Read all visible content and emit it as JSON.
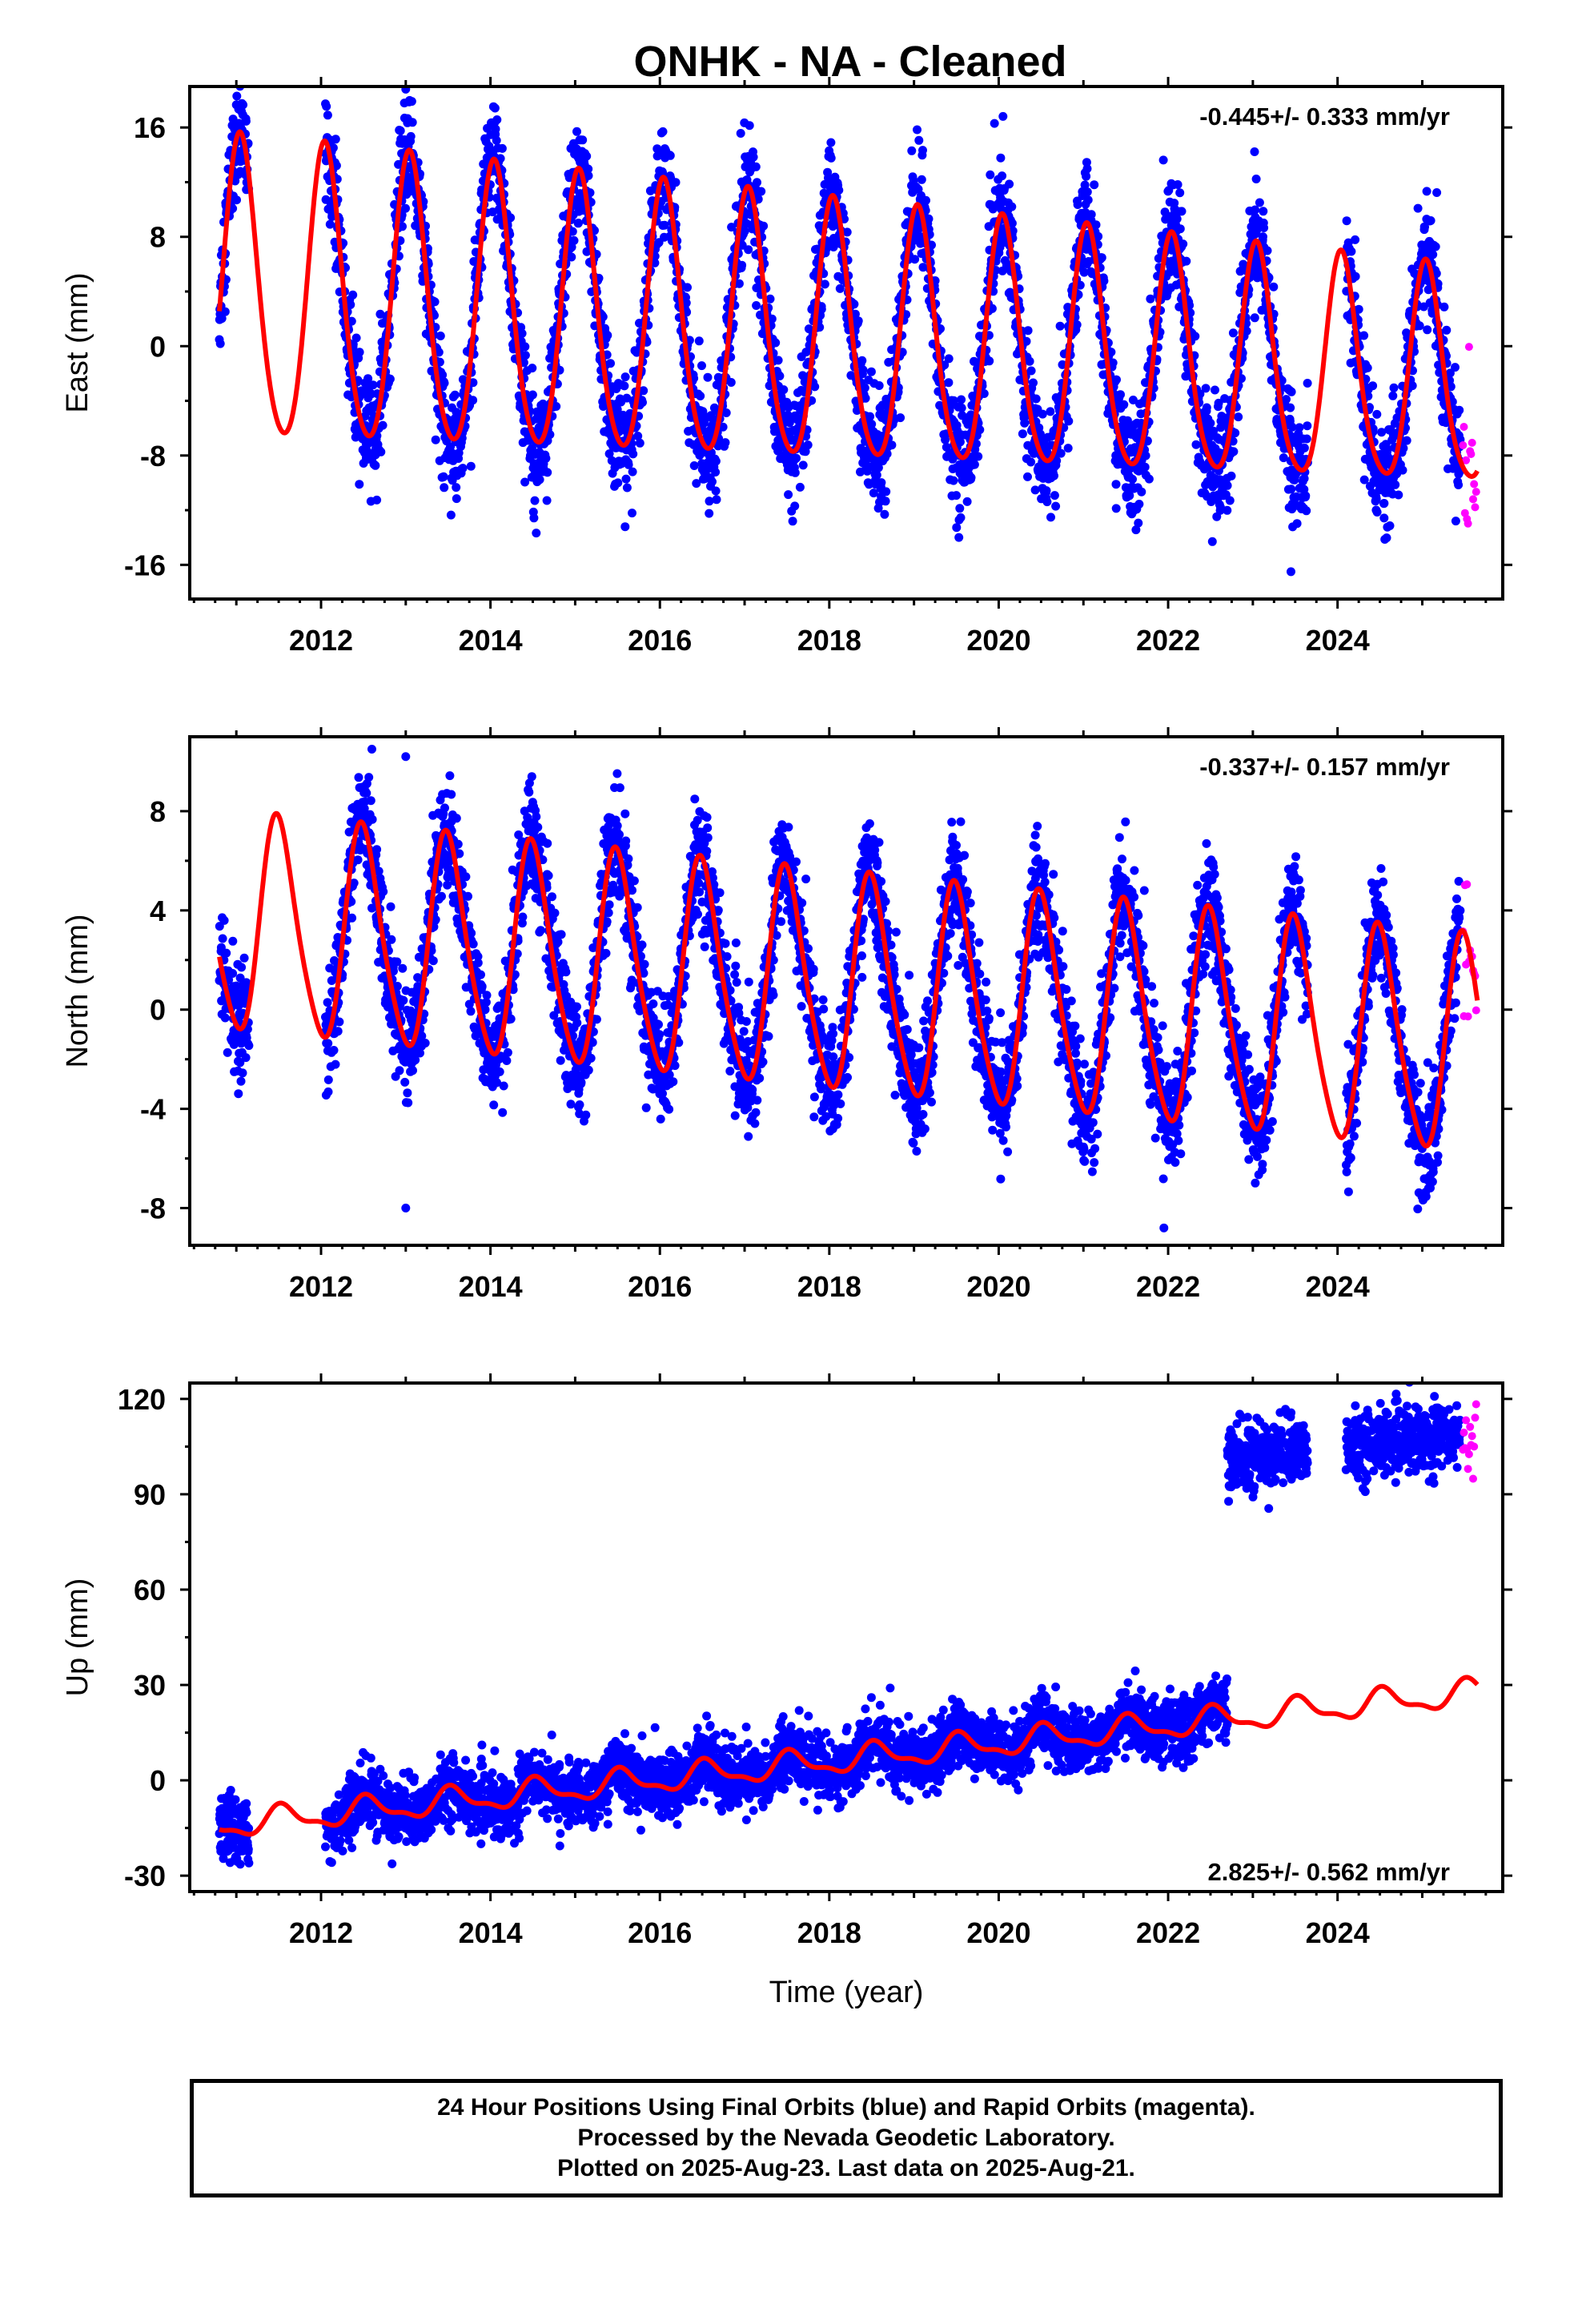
{
  "title": "ONHK  - NA - Cleaned",
  "footer": {
    "line1": "24 Hour Positions Using Final Orbits (blue) and Rapid Orbits (magenta).",
    "line2": "Processed by the Nevada Geodetic Laboratory.",
    "line3": "Plotted on 2025-Aug-23. Last data on 2025-Aug-21."
  },
  "colors": {
    "final": "#0000ff",
    "rapid": "#ff00ff",
    "model": "#ff0000"
  },
  "chart_data": [
    {
      "type": "scatter",
      "component": "East",
      "ylabel": "East (mm)",
      "xlabel": "",
      "rate_label": "-0.445+/- 0.333 mm/yr",
      "rate_position": "top-right",
      "xlim": [
        2010.45,
        2025.95
      ],
      "ylim": [
        -18.5,
        19
      ],
      "xticks": [
        2012,
        2014,
        2016,
        2018,
        2020,
        2022,
        2024
      ],
      "yticks": [
        -16,
        -8,
        0,
        8,
        16
      ],
      "grid": false,
      "series": [
        {
          "name": "Final Orbits (blue)",
          "data_start": 2010.8,
          "data_end": 2025.45,
          "gap": [
            2011.15,
            2012.05
          ],
          "gap2": [
            2023.65,
            2024.1
          ]
        },
        {
          "name": "Rapid Orbits (magenta)",
          "data_start": 2025.48,
          "data_end": 2025.64
        }
      ],
      "model": {
        "offset": 0.5,
        "slope": -0.445,
        "epoch": 2018,
        "annual_amp": 9.4,
        "annual_amp_slope": -0.22,
        "annual_peak": 2018.05,
        "semiannual_amp": 1.2,
        "semiannual_phase": 0.3
      },
      "noise_sd": 2.0,
      "outliers": [
        [
          2013.0,
          18.8
        ],
        [
          2019.95,
          16.3
        ],
        [
          2024.55,
          -11.5
        ],
        [
          2023.45,
          -16.5
        ]
      ]
    },
    {
      "type": "scatter",
      "component": "North",
      "ylabel": "North (mm)",
      "xlabel": "",
      "rate_label": "-0.337+/- 0.157 mm/yr",
      "rate_position": "top-right",
      "xlim": [
        2010.45,
        2025.95
      ],
      "ylim": [
        -9.5,
        11
      ],
      "xticks": [
        2012,
        2014,
        2016,
        2018,
        2020,
        2022,
        2024
      ],
      "yticks": [
        -8,
        -4,
        0,
        4,
        8
      ],
      "grid": false,
      "series": [
        {
          "name": "Final Orbits (blue)",
          "data_start": 2010.8,
          "data_end": 2025.45,
          "gap": [
            2011.15,
            2012.05
          ],
          "gap2": [
            2023.65,
            2024.1
          ]
        },
        {
          "name": "Rapid Orbits (magenta)",
          "data_start": 2025.48,
          "data_end": 2025.64
        }
      ],
      "model": {
        "offset": 1.0,
        "slope": -0.337,
        "epoch": 2018,
        "annual_amp": 4.3,
        "annual_amp_slope": 0.0,
        "annual_peak": 2018.5,
        "semiannual_amp": 0.6,
        "semiannual_phase": 1.0
      },
      "noise_sd": 1.1,
      "outliers": [
        [
          2012.6,
          10.5
        ],
        [
          2013.0,
          10.2
        ],
        [
          2013.0,
          -8.0
        ],
        [
          2021.95,
          -8.8
        ]
      ]
    },
    {
      "type": "scatter",
      "component": "Up",
      "ylabel": "Up (mm)",
      "xlabel": "Time (year)",
      "rate_label": "2.825+/- 0.562 mm/yr",
      "rate_position": "bottom-right",
      "xlim": [
        2010.45,
        2025.95
      ],
      "ylim": [
        -35,
        125
      ],
      "xticks": [
        2012,
        2014,
        2016,
        2018,
        2020,
        2022,
        2024
      ],
      "yticks": [
        -30,
        0,
        30,
        60,
        90,
        120
      ],
      "grid": false,
      "series": [
        {
          "name": "Final Orbits (blue)",
          "data_start": 2010.8,
          "data_end": 2022.7,
          "gap": [
            2011.15,
            2012.05
          ]
        },
        {
          "name": "Final Orbits (blue) after offset",
          "data_start": 2022.7,
          "data_end": 2025.45,
          "gap": [
            2023.65,
            2024.1
          ],
          "level": 101,
          "level_slope": 3.0
        },
        {
          "name": "Rapid Orbits (magenta)",
          "data_start": 2025.48,
          "data_end": 2025.64,
          "level": 108
        }
      ],
      "model": {
        "offset": 6.0,
        "slope": 2.825,
        "epoch": 2018,
        "annual_amp": 3.8,
        "annual_amp_slope": 0.0,
        "annual_peak": 2018.55,
        "semiannual_amp": 1.5,
        "semiannual_phase": 0.7
      },
      "noise_sd": 4.8,
      "outliers": []
    }
  ]
}
